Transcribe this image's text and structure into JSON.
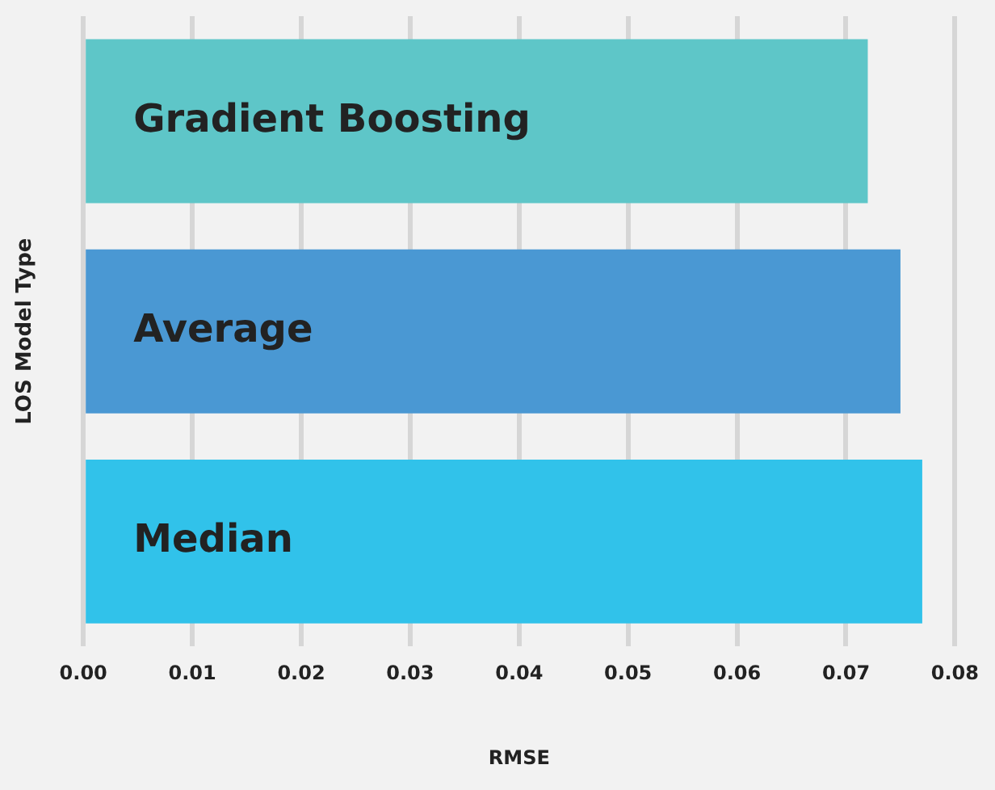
{
  "chart_data": {
    "type": "bar",
    "orientation": "horizontal",
    "xlabel": "RMSE",
    "ylabel": "LOS Model Type",
    "categories": [
      "Gradient Boosting",
      "Average",
      "Median"
    ],
    "values": [
      0.072,
      0.075,
      0.077
    ],
    "colors": [
      "#5ec6c8",
      "#4a98d3",
      "#31c2ea"
    ],
    "xlim": [
      0,
      0.08
    ],
    "xticks": [
      {
        "value": 0,
        "label": "0.00"
      },
      0.01,
      0.02,
      0.03,
      0.04,
      0.05,
      0.06,
      0.07,
      0.08
    ],
    "grid": "x",
    "legend": false
  }
}
